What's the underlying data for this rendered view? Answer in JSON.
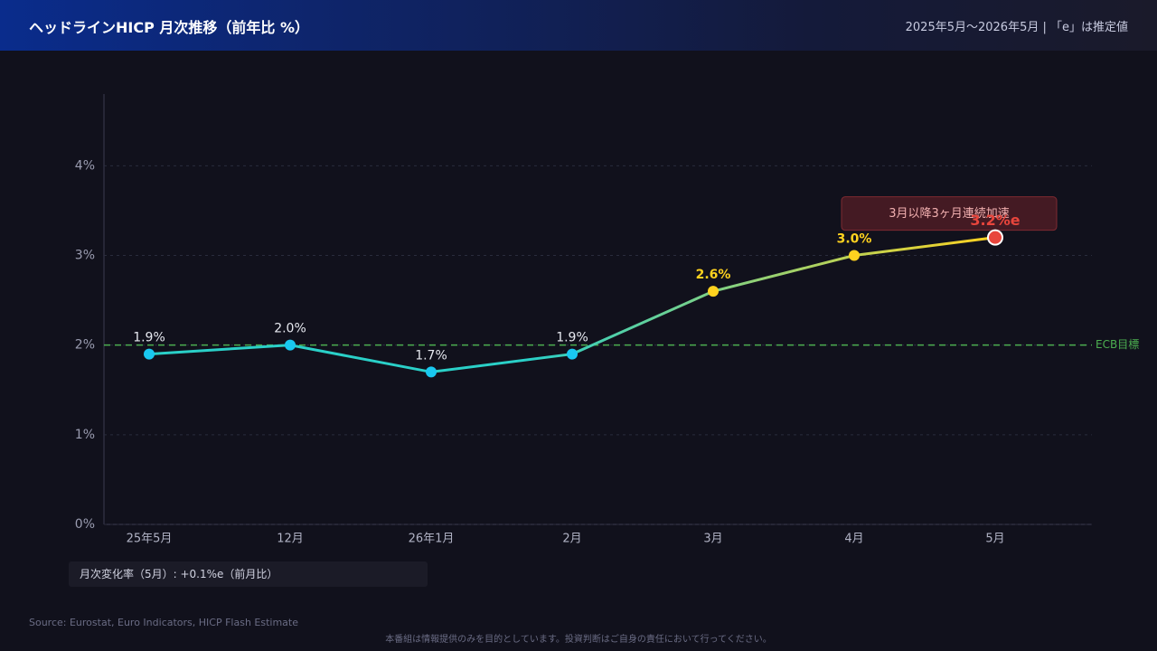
{
  "header": {
    "title": "ヘッドラインHICP 月次推移（前年比 %）",
    "subtitle": "2025年5月〜2026年5月 | 「e」は推定値"
  },
  "chart_data": {
    "type": "line",
    "categories": [
      "25年5月",
      "12月",
      "26年1月",
      "2月",
      "3月",
      "4月",
      "5月"
    ],
    "values": [
      1.9,
      2.0,
      1.7,
      1.9,
      2.6,
      3.0,
      3.2
    ],
    "value_labels": [
      "1.9%",
      "2.0%",
      "1.7%",
      "1.9%",
      "2.6%",
      "3.0%",
      "3.2%e"
    ],
    "point_colors": [
      "#19c8f0",
      "#19c8f0",
      "#19c8f0",
      "#19c8f0",
      "#ffd21f",
      "#ffd21f",
      "#e8453c"
    ],
    "label_colors": [
      "#e6e8ef",
      "#e6e8ef",
      "#e6e8ef",
      "#e6e8ef",
      "#ffd21f",
      "#ffd21f",
      "#e8453c"
    ],
    "line_gradient": [
      "#2ad0c8",
      "#ffd21f"
    ],
    "ylim": [
      0,
      4.8
    ],
    "yticks": [
      {
        "value": 0,
        "label": "0%"
      },
      {
        "value": 1,
        "label": "1%"
      },
      {
        "value": 2,
        "label": "2%"
      },
      {
        "value": 3,
        "label": "3%"
      },
      {
        "value": 4,
        "label": "4%"
      }
    ],
    "grid": true,
    "reference_line": {
      "value": 2,
      "label": "ECB目標",
      "color": "#4caf50"
    },
    "annotation": "3月以降3ヶ月連続加速"
  },
  "note": "月次変化率（5月）: +0.1%e（前月比）",
  "source": "Source: Eurostat, Euro Indicators, HICP Flash Estimate",
  "disclaimer": "本番組は情報提供のみを目的としています。投資判断はご自身の責任において行ってください。"
}
